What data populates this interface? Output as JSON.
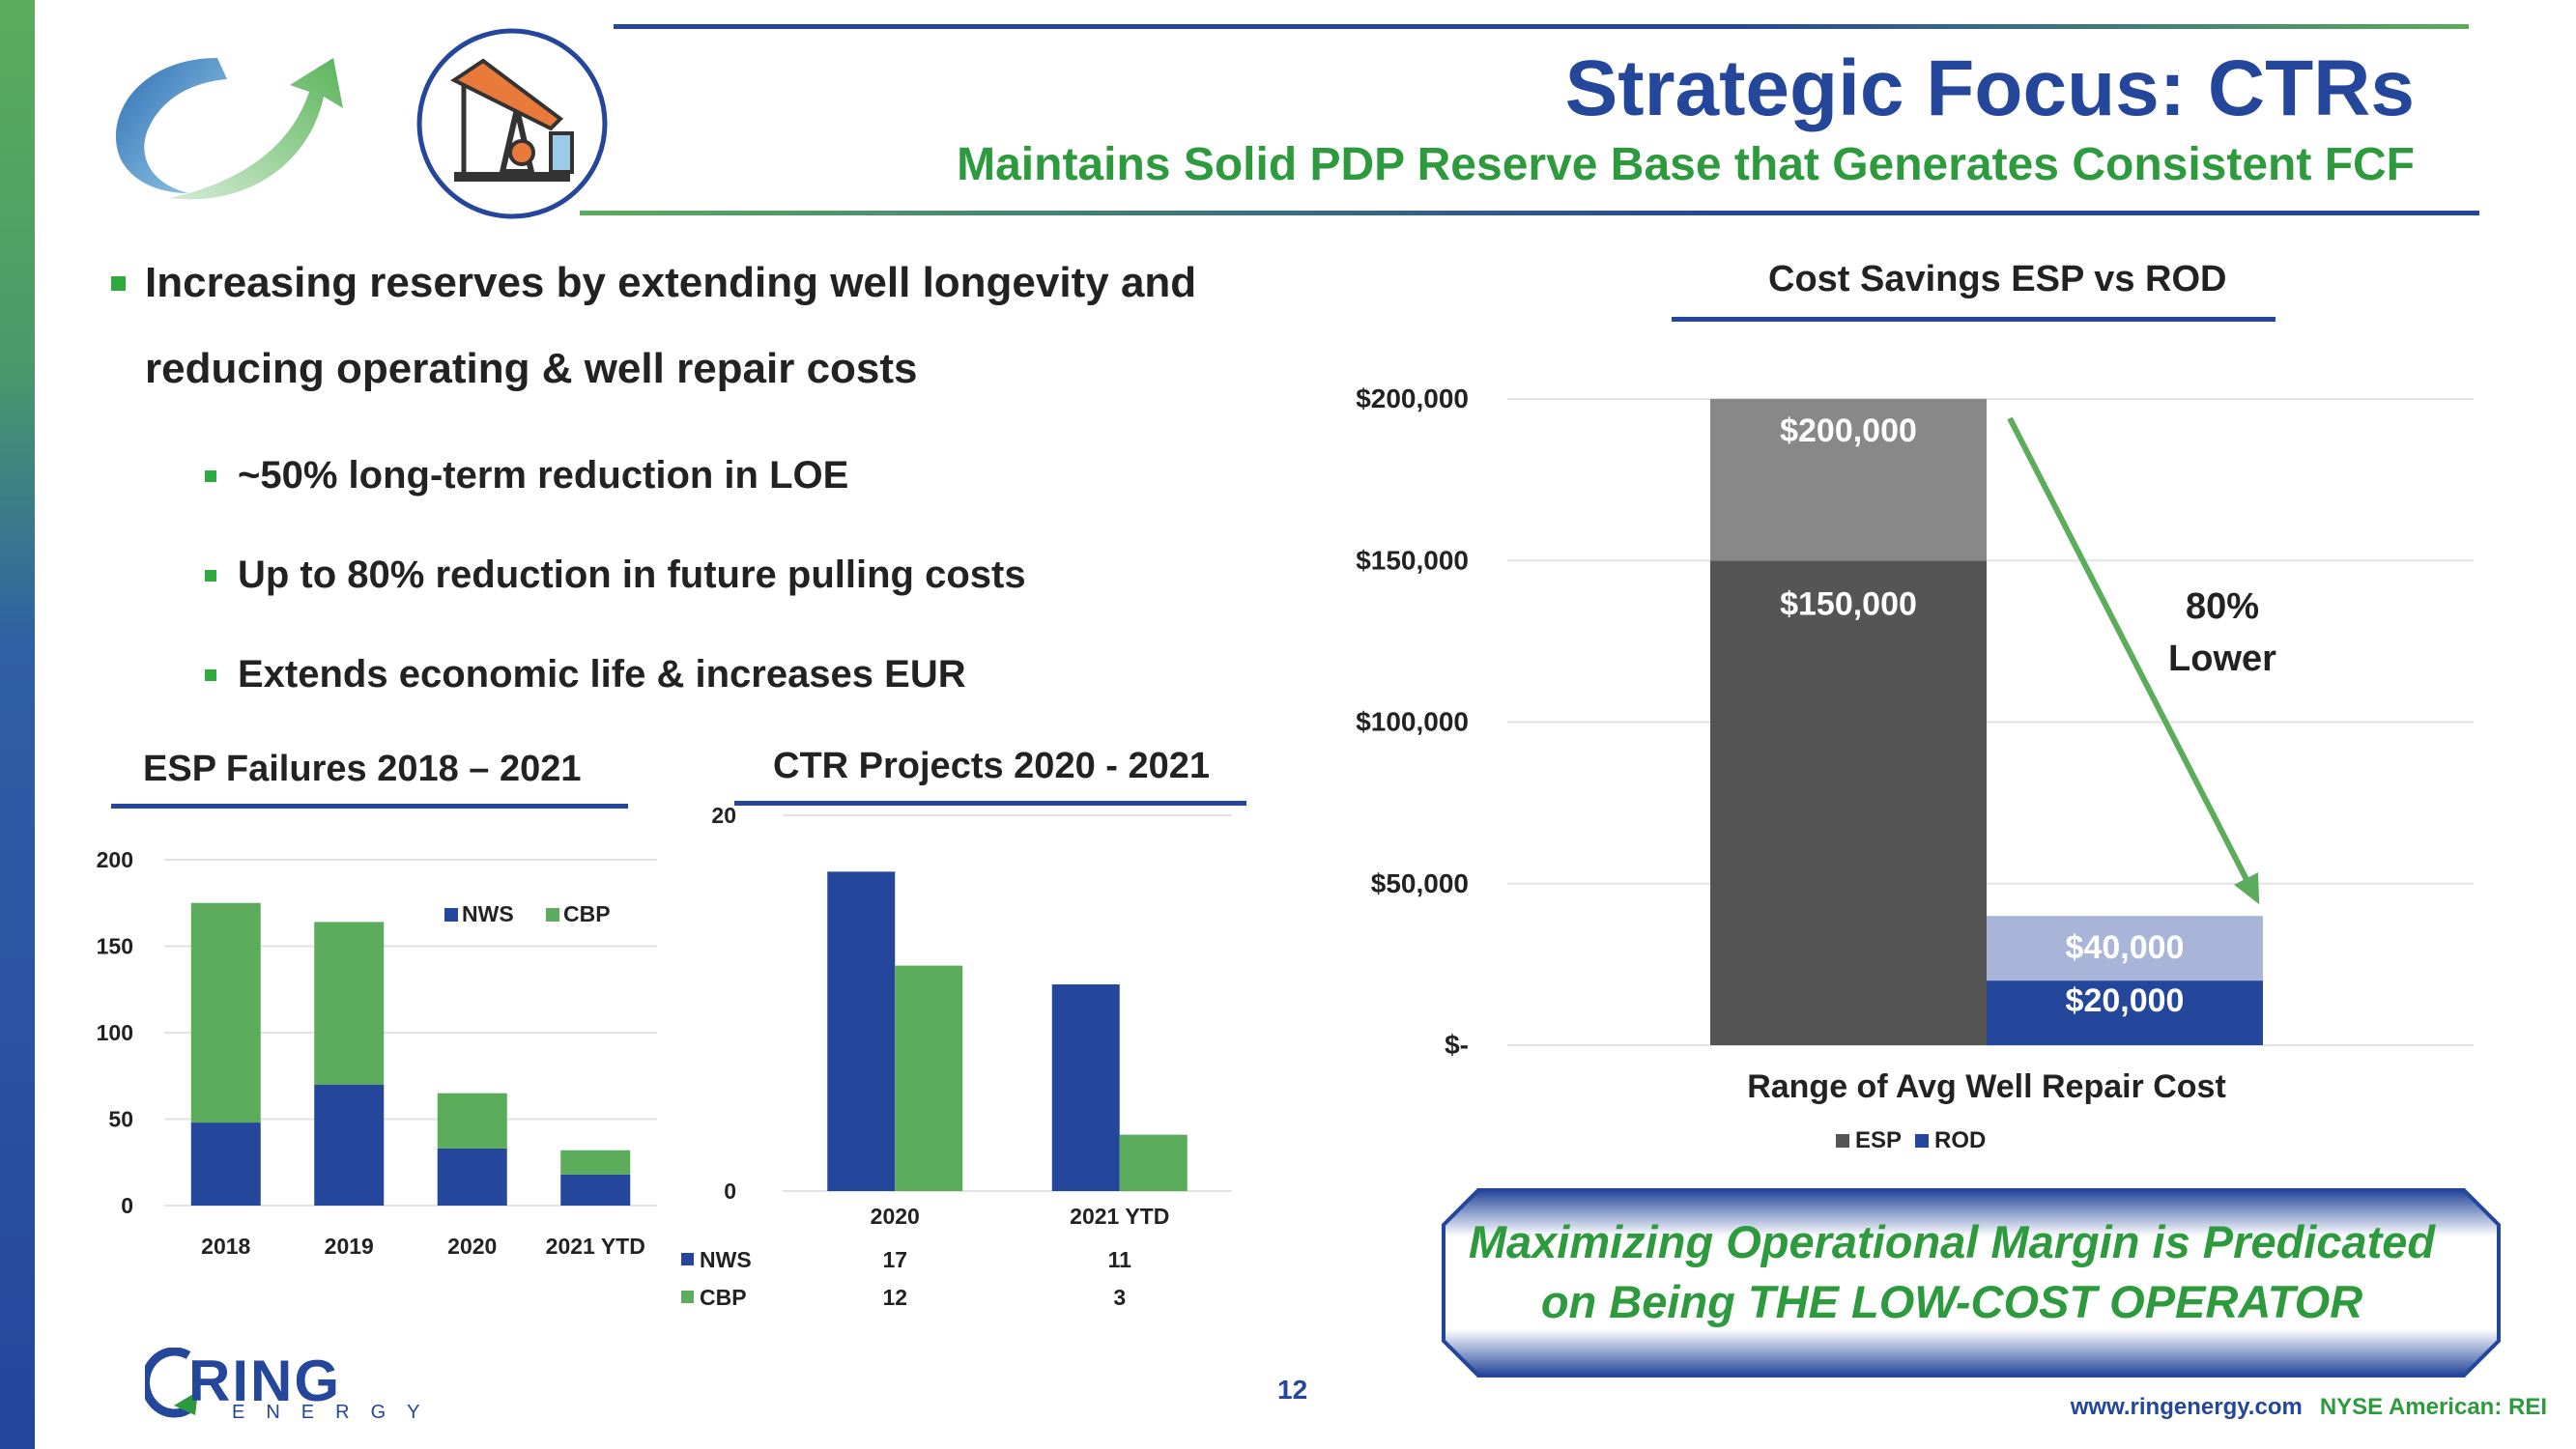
{
  "header": {
    "title": "Strategic Focus: CTRs",
    "subtitle": "Maintains Solid PDP Reserve Base that Generates Consistent FCF"
  },
  "bullets": {
    "main_line1": "Increasing reserves by extending well longevity and",
    "main_line2": "reducing operating & well repair costs",
    "sub": [
      "~50% long-term reduction in LOE",
      "Up to 80% reduction in future pulling costs",
      "Extends economic life & increases EUR"
    ]
  },
  "chart_data": [
    {
      "type": "bar",
      "title": "ESP Failures 2018 – 2021",
      "stacked": true,
      "categories": [
        "2018",
        "2019",
        "2020",
        "2021 YTD"
      ],
      "series": [
        {
          "name": "NWS",
          "values": [
            48,
            70,
            33,
            18
          ],
          "color": "#24469b"
        },
        {
          "name": "CBP",
          "values": [
            127,
            94,
            32,
            14
          ],
          "color": "#5bac5b"
        }
      ],
      "ylim": [
        0,
        200
      ],
      "yticks": [
        "0",
        "50",
        "100",
        "150",
        "200"
      ],
      "legend": "top-right",
      "grid": true
    },
    {
      "type": "bar",
      "title": "CTR Projects 2020 - 2021",
      "categories": [
        "2020",
        "2021 YTD"
      ],
      "series": [
        {
          "name": "NWS",
          "values": [
            17,
            11
          ],
          "color": "#24469b"
        },
        {
          "name": "CBP",
          "values": [
            12,
            3
          ],
          "color": "#5bac5b"
        }
      ],
      "ylim": [
        0,
        20
      ],
      "yticks": [
        "0",
        "20"
      ],
      "data_table": [
        [
          "17",
          "11"
        ],
        [
          "12",
          "3"
        ]
      ],
      "grid": true
    },
    {
      "type": "bar",
      "title": "Cost Savings ESP vs ROD",
      "xlabel": "Range of Avg Well Repair Cost",
      "stacked": true,
      "ranges": [
        {
          "name": "ESP",
          "low": 150000,
          "high": 200000,
          "low_label": "$150,000",
          "high_label": "$200,000",
          "color": "#555555",
          "light": "#888888"
        },
        {
          "name": "ROD",
          "low": 20000,
          "high": 40000,
          "low_label": "$20,000",
          "high_label": "$40,000",
          "color": "#24469b",
          "light": "#a8b5d9"
        }
      ],
      "ylim": [
        0,
        200000
      ],
      "yticks": [
        "$-",
        "$50,000",
        "$100,000",
        "$150,000",
        "$200,000"
      ],
      "annotation": [
        "80%",
        "Lower"
      ],
      "legend": "bottom",
      "grid": true
    }
  ],
  "callout": {
    "line1": "Maximizing Operational Margin is Predicated",
    "line2": "on Being THE LOW-COST OPERATOR"
  },
  "footer": {
    "page": "12",
    "website": "www.ringenergy.com",
    "exchange": "NYSE American: REI",
    "logo_word": "RING",
    "logo_sub": "ENERGY"
  },
  "colors": {
    "brand_blue": "#24469b",
    "brand_green": "#2e9a3e"
  },
  "icons": [
    "cycle-arrow-icon",
    "pumpjack-icon"
  ]
}
